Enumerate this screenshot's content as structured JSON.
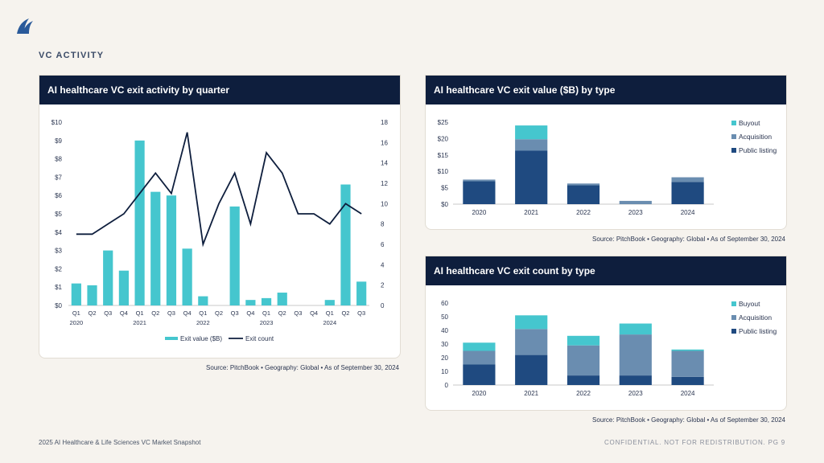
{
  "header": {
    "section": "VC ACTIVITY"
  },
  "colors": {
    "buyout": "#45c6ce",
    "acquisition": "#6a8db0",
    "public": "#1f4a80",
    "line": "#0e1e3d",
    "bar": "#45c6ce"
  },
  "footer": {
    "left": "2025 AI Healthcare & Life Sciences VC Market Snapshot",
    "right": "CONFIDENTIAL. NOT FOR REDISTRIBUTION. PG 9"
  },
  "chart_data": [
    {
      "id": "quarterly",
      "type": "bar",
      "title": "AI healthcare VC exit activity by quarter",
      "source": "Source: PitchBook  •  Geography: Global  •  As of September 30, 2024",
      "categories": [
        "Q1",
        "Q2",
        "Q3",
        "Q4",
        "Q1",
        "Q2",
        "Q3",
        "Q4",
        "Q1",
        "Q2",
        "Q3",
        "Q4",
        "Q1",
        "Q2",
        "Q3",
        "Q4",
        "Q1",
        "Q2",
        "Q3"
      ],
      "years": [
        {
          "label": "2020",
          "index": 0
        },
        {
          "label": "2021",
          "index": 4
        },
        {
          "label": "2022",
          "index": 8
        },
        {
          "label": "2023",
          "index": 12
        },
        {
          "label": "2024",
          "index": 16
        }
      ],
      "series": [
        {
          "name": "Exit value ($B)",
          "kind": "bar",
          "values": [
            1.2,
            1.1,
            3.0,
            1.9,
            9.0,
            6.2,
            6.0,
            3.1,
            0.5,
            0,
            5.4,
            0.3,
            0.4,
            0.7,
            0,
            0,
            0.3,
            6.6,
            1.3
          ]
        },
        {
          "name": "Exit count",
          "kind": "line",
          "values": [
            7,
            7,
            8,
            9,
            11,
            13,
            11,
            17,
            6,
            10,
            13,
            8,
            15,
            13,
            9,
            9,
            8,
            10,
            9
          ]
        }
      ],
      "yticks_left": [
        "$0",
        "$1",
        "$2",
        "$3",
        "$4",
        "$5",
        "$6",
        "$7",
        "$8",
        "$9",
        "$10"
      ],
      "yticks_right": [
        "0",
        "2",
        "4",
        "6",
        "8",
        "10",
        "12",
        "14",
        "16",
        "18"
      ],
      "ylim_left": [
        0,
        10
      ],
      "ylim_right": [
        0,
        18
      ],
      "legend": [
        "Exit value ($B)",
        "Exit count"
      ]
    },
    {
      "id": "value",
      "type": "bar",
      "stacked": true,
      "title": "AI healthcare VC exit value ($B) by type",
      "source": "Source: PitchBook  •  Geography: Global  •  As of September 30, 2024",
      "categories": [
        "2020",
        "2021",
        "2022",
        "2023",
        "2024"
      ],
      "series": [
        {
          "name": "Public listing",
          "values": [
            7.0,
            16.3,
            5.8,
            0,
            6.8
          ]
        },
        {
          "name": "Acquisition",
          "values": [
            0.5,
            3.5,
            0.5,
            1.0,
            1.4
          ]
        },
        {
          "name": "Buyout",
          "values": [
            0,
            4.2,
            0,
            0,
            0
          ]
        }
      ],
      "yticks": [
        "$0",
        "$5",
        "$10",
        "$15",
        "$20",
        "$25"
      ],
      "ylim": [
        0,
        25
      ],
      "legend": [
        "Buyout",
        "Acquisition",
        "Public listing"
      ]
    },
    {
      "id": "count",
      "type": "bar",
      "stacked": true,
      "title": "AI healthcare VC exit count by type",
      "source": "Source: PitchBook  •  Geography: Global  •  As of September 30, 2024",
      "categories": [
        "2020",
        "2021",
        "2022",
        "2023",
        "2024"
      ],
      "series": [
        {
          "name": "Public listing",
          "values": [
            15,
            22,
            7,
            7,
            6
          ]
        },
        {
          "name": "Acquisition",
          "values": [
            10,
            19,
            22,
            30,
            19
          ]
        },
        {
          "name": "Buyout",
          "values": [
            6,
            10,
            7,
            8,
            1
          ]
        }
      ],
      "yticks": [
        "0",
        "10",
        "20",
        "30",
        "40",
        "50",
        "60"
      ],
      "ylim": [
        0,
        60
      ],
      "legend": [
        "Buyout",
        "Acquisition",
        "Public listing"
      ]
    }
  ]
}
